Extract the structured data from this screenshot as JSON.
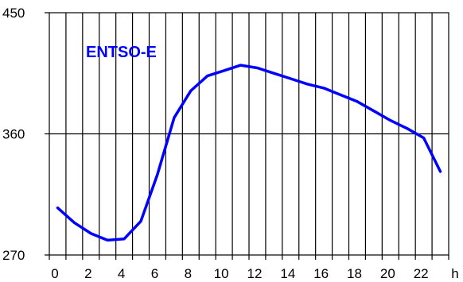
{
  "chart_data": {
    "type": "line",
    "title": "",
    "xlabel": "h",
    "ylabel": "",
    "xlim": [
      0,
      24
    ],
    "ylim": [
      270,
      450
    ],
    "x_ticks": [
      0,
      2,
      4,
      6,
      8,
      10,
      12,
      14,
      16,
      18,
      20,
      22
    ],
    "y_ticks": [
      270,
      360,
      450
    ],
    "grid": "vertical lines every 1 h, horizontal line at 360",
    "series": [
      {
        "name": "ENTSO-E",
        "color": "#0000ff",
        "x": [
          0.5,
          1.5,
          2.5,
          3.5,
          4.5,
          5.5,
          6.5,
          7.5,
          8.5,
          9.5,
          10.5,
          11.5,
          12.5,
          13.5,
          14.5,
          15.5,
          16.5,
          17.5,
          18.5,
          19.5,
          20.5,
          21.5,
          22.5,
          23.5
        ],
        "values": [
          305,
          294,
          286,
          281,
          282,
          295,
          330,
          372,
          392,
          403,
          407,
          411,
          409,
          405,
          401,
          397,
          394,
          389,
          384,
          377,
          370,
          364,
          357,
          332
        ]
      }
    ]
  }
}
